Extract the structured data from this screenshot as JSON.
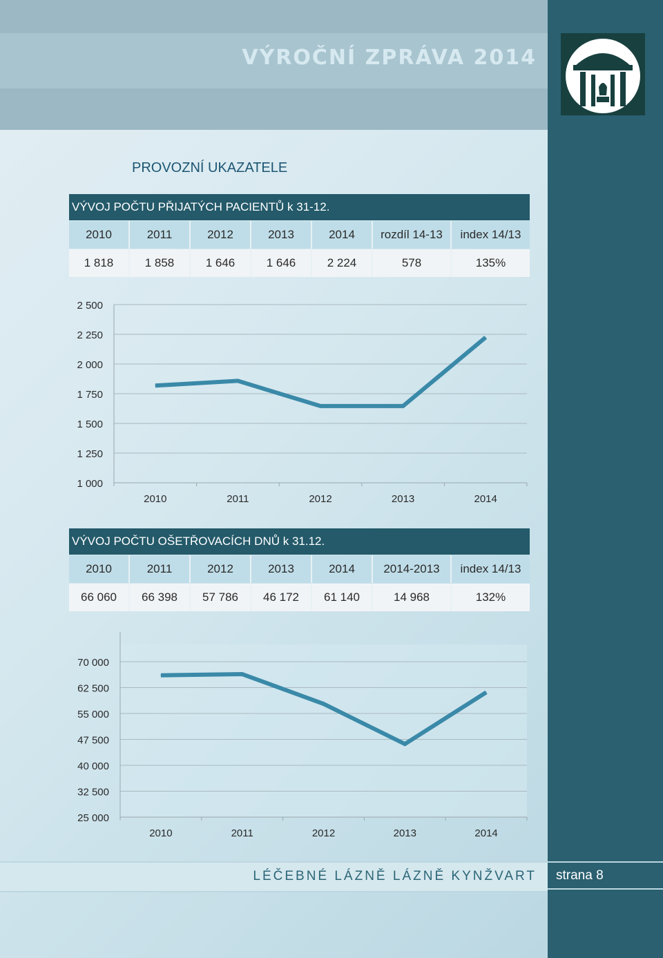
{
  "header": {
    "report_title": "VÝROČNÍ ZPRÁVA 2014"
  },
  "section_title": "PROVOZNÍ UKAZATELE",
  "table1": {
    "title": "VÝVOJ POČTU PŘIJATÝCH PACIENTŮ k 31-12.",
    "headers": [
      "2010",
      "2011",
      "2012",
      "2013",
      "2014",
      "rozdíl 14-13",
      "index 14/13"
    ],
    "values": [
      "1 818",
      "1 858",
      "1 646",
      "1 646",
      "2 224",
      "578",
      "135%"
    ]
  },
  "table2": {
    "title": "VÝVOJ POČTU OŠETŘOVACÍCH DNŮ k 31.12.",
    "headers": [
      "2010",
      "2011",
      "2012",
      "2013",
      "2014",
      "2014-2013",
      "index 14/13"
    ],
    "values": [
      "66 060",
      "66 398",
      "57 786",
      "46 172",
      "61 140",
      "14 968",
      "132%"
    ]
  },
  "colors": {
    "line": "#3a89a8",
    "table_title_bg": "#245a6a",
    "side_bar": "#2a6070"
  },
  "chart_data": [
    {
      "type": "line",
      "categories": [
        "2010",
        "2011",
        "2012",
        "2013",
        "2014"
      ],
      "values": [
        1818,
        1858,
        1646,
        1646,
        2224
      ],
      "yticks": [
        "1 000",
        "1 250",
        "1 500",
        "1 750",
        "2 000",
        "2 250",
        "2 500"
      ],
      "ylim": [
        1000,
        2500
      ],
      "grid": true
    },
    {
      "type": "line",
      "categories": [
        "2010",
        "2011",
        "2012",
        "2013",
        "2014"
      ],
      "values": [
        66060,
        66398,
        57786,
        46172,
        61140
      ],
      "yticks": [
        "25 000",
        "32 500",
        "40 000",
        "47 500",
        "55 000",
        "62 500",
        "70 000"
      ],
      "ylim": [
        25000,
        75000
      ],
      "grid": true
    }
  ],
  "footer": {
    "title": "LÉČEBNÉ LÁZNĚ LÁZNĚ KYNŽVART",
    "page": "strana 8"
  }
}
